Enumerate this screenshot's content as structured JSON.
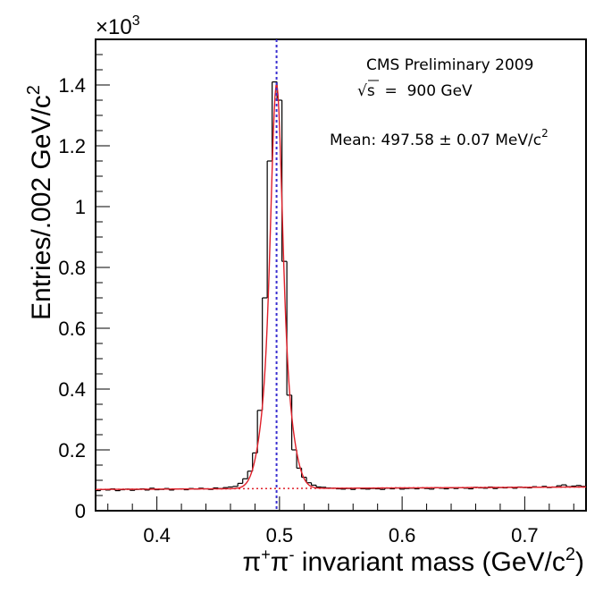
{
  "chart_data": {
    "type": "line",
    "title": "",
    "xlabel": "π⁺π⁻ invariant mass (GeV/c²)",
    "xlabel_parts": {
      "pi1": "π",
      "plus": "+",
      "pi2": "π",
      "minus": "-",
      "text": " invariant mass (GeV/c",
      "sup": "2",
      "close": ")"
    },
    "ylabel": "Entries/.002 GeV/c²",
    "ylabel_parts": {
      "text": "Entries/.002 GeV/c",
      "sup": "2"
    },
    "y_multiplier": "×10³",
    "y_multiplier_parts": {
      "base": "×10",
      "exp": "3"
    },
    "xlim": [
      0.35,
      0.75
    ],
    "ylim": [
      0,
      1.55
    ],
    "x_ticks": [
      0.4,
      0.5,
      0.6,
      0.7
    ],
    "x_tick_labels": [
      "0.4",
      "0.5",
      "0.6",
      "0.7"
    ],
    "y_ticks": [
      0,
      0.2,
      0.4,
      0.6,
      0.8,
      1,
      1.2,
      1.4
    ],
    "y_tick_labels": [
      "0",
      "0.2",
      "0.4",
      "0.6",
      "0.8",
      "1",
      "1.2",
      "1.4"
    ],
    "grid": false,
    "annotations": {
      "experiment": "CMS Preliminary 2009",
      "energy_sqrt": "√s",
      "energy_rest": "  =  900 GeV",
      "mean_text": "Mean: 497.58 ± 0.07 MeV/c",
      "mean_sup": "2"
    },
    "mean_line_x": 0.4976,
    "colors": {
      "histogram": "#000000",
      "fit": "#e0202a",
      "background": "#e0202a",
      "mean_line": "#3a2fd0"
    },
    "fit_model": {
      "background_level": 0.07,
      "background_slope": 0.02,
      "peak_center": 0.4976,
      "peak_height": 1.33,
      "narrow_sigma": 0.0042,
      "wide_sigma": 0.0095,
      "narrow_fraction": 0.6
    },
    "series": [
      {
        "name": "",
        "style": "histogram",
        "x": [
          0.352,
          0.356,
          0.36,
          0.364,
          0.368,
          0.372,
          0.376,
          0.38,
          0.384,
          0.388,
          0.392,
          0.396,
          0.4,
          0.404,
          0.408,
          0.412,
          0.416,
          0.42,
          0.424,
          0.428,
          0.432,
          0.436,
          0.44,
          0.444,
          0.448,
          0.452,
          0.456,
          0.46,
          0.464,
          0.468,
          0.472,
          0.476,
          0.48,
          0.484,
          0.488,
          0.492,
          0.496,
          0.5,
          0.504,
          0.508,
          0.512,
          0.516,
          0.52,
          0.524,
          0.528,
          0.532,
          0.536,
          0.54,
          0.544,
          0.548,
          0.552,
          0.556,
          0.56,
          0.564,
          0.568,
          0.572,
          0.576,
          0.58,
          0.584,
          0.588,
          0.592,
          0.596,
          0.6,
          0.604,
          0.608,
          0.612,
          0.616,
          0.62,
          0.624,
          0.628,
          0.632,
          0.636,
          0.64,
          0.644,
          0.648,
          0.652,
          0.656,
          0.66,
          0.664,
          0.668,
          0.672,
          0.676,
          0.68,
          0.684,
          0.688,
          0.692,
          0.696,
          0.7,
          0.704,
          0.708,
          0.712,
          0.716,
          0.72,
          0.724,
          0.728,
          0.732,
          0.736,
          0.74,
          0.744,
          0.748
        ],
        "y": [
          0.066,
          0.07,
          0.068,
          0.072,
          0.066,
          0.069,
          0.071,
          0.067,
          0.07,
          0.072,
          0.068,
          0.074,
          0.069,
          0.07,
          0.073,
          0.068,
          0.071,
          0.072,
          0.069,
          0.073,
          0.071,
          0.074,
          0.072,
          0.07,
          0.075,
          0.073,
          0.076,
          0.078,
          0.08,
          0.09,
          0.105,
          0.13,
          0.19,
          0.33,
          0.7,
          1.15,
          1.41,
          1.35,
          0.82,
          0.38,
          0.2,
          0.14,
          0.11,
          0.092,
          0.084,
          0.078,
          0.077,
          0.075,
          0.074,
          0.072,
          0.071,
          0.073,
          0.07,
          0.074,
          0.072,
          0.071,
          0.073,
          0.072,
          0.07,
          0.074,
          0.072,
          0.075,
          0.071,
          0.073,
          0.074,
          0.072,
          0.075,
          0.073,
          0.071,
          0.076,
          0.074,
          0.072,
          0.075,
          0.073,
          0.076,
          0.074,
          0.072,
          0.077,
          0.075,
          0.074,
          0.078,
          0.073,
          0.076,
          0.075,
          0.077,
          0.074,
          0.078,
          0.076,
          0.075,
          0.079,
          0.077,
          0.08,
          0.076,
          0.078,
          0.082,
          0.085,
          0.079,
          0.081,
          0.083,
          0.08
        ]
      }
    ]
  }
}
